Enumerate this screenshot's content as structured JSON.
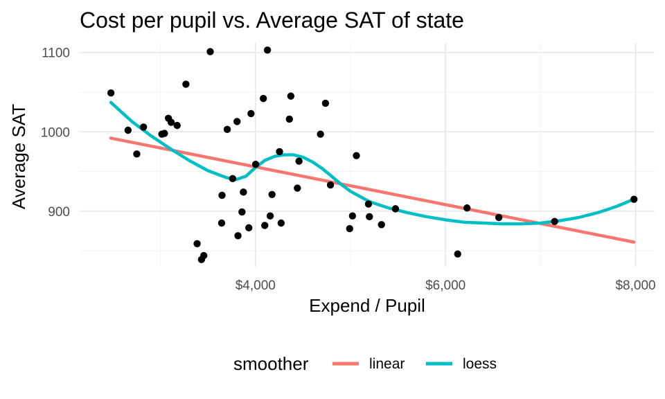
{
  "chart_data": {
    "type": "scatter",
    "title": "Cost per pupil vs. Average SAT of state",
    "xlabel": "Expend / Pupil",
    "ylabel": "Average SAT",
    "x_ticks": [
      4000,
      6000,
      8000
    ],
    "x_tick_labels": [
      "$4,000",
      "$6,000",
      "$8,000"
    ],
    "y_ticks": [
      900,
      1000,
      1100
    ],
    "y_tick_labels": [
      "900",
      "1000",
      "1100"
    ],
    "xlim": [
      2150,
      8200
    ],
    "ylim": [
      830,
      1112
    ],
    "grid": true,
    "legend_position": "bottom",
    "points": [
      {
        "x": 2479,
        "y": 1049
      },
      {
        "x": 2659,
        "y": 1002
      },
      {
        "x": 2751,
        "y": 972
      },
      {
        "x": 2822,
        "y": 1006
      },
      {
        "x": 3015,
        "y": 997
      },
      {
        "x": 3042,
        "y": 998
      },
      {
        "x": 3084,
        "y": 1017
      },
      {
        "x": 3113,
        "y": 1012
      },
      {
        "x": 3176,
        "y": 1008
      },
      {
        "x": 3268,
        "y": 1060
      },
      {
        "x": 3386,
        "y": 859
      },
      {
        "x": 3432,
        "y": 839
      },
      {
        "x": 3456,
        "y": 844
      },
      {
        "x": 3524,
        "y": 1101
      },
      {
        "x": 3644,
        "y": 885
      },
      {
        "x": 3648,
        "y": 920
      },
      {
        "x": 3703,
        "y": 1003
      },
      {
        "x": 3760,
        "y": 941
      },
      {
        "x": 3806,
        "y": 1013
      },
      {
        "x": 3816,
        "y": 869
      },
      {
        "x": 3858,
        "y": 899
      },
      {
        "x": 3873,
        "y": 924
      },
      {
        "x": 3930,
        "y": 879
      },
      {
        "x": 3953,
        "y": 1023
      },
      {
        "x": 4002,
        "y": 959
      },
      {
        "x": 4083,
        "y": 1042
      },
      {
        "x": 4098,
        "y": 882
      },
      {
        "x": 4126,
        "y": 1103
      },
      {
        "x": 4155,
        "y": 894
      },
      {
        "x": 4174,
        "y": 921
      },
      {
        "x": 4253,
        "y": 975
      },
      {
        "x": 4270,
        "y": 885
      },
      {
        "x": 4357,
        "y": 1016
      },
      {
        "x": 4372,
        "y": 1045
      },
      {
        "x": 4441,
        "y": 929
      },
      {
        "x": 4458,
        "y": 963
      },
      {
        "x": 4684,
        "y": 997
      },
      {
        "x": 4737,
        "y": 1036
      },
      {
        "x": 4789,
        "y": 933
      },
      {
        "x": 4991,
        "y": 878
      },
      {
        "x": 5021,
        "y": 894
      },
      {
        "x": 5062,
        "y": 970
      },
      {
        "x": 5189,
        "y": 909
      },
      {
        "x": 5199,
        "y": 893
      },
      {
        "x": 5326,
        "y": 883
      },
      {
        "x": 5473,
        "y": 903
      },
      {
        "x": 6128,
        "y": 846
      },
      {
        "x": 6226,
        "y": 904
      },
      {
        "x": 6561,
        "y": 892
      },
      {
        "x": 7148,
        "y": 887
      },
      {
        "x": 7983,
        "y": 915
      }
    ],
    "series": [
      {
        "name": "linear",
        "color": "#F8766D",
        "x": [
          2479,
          7983
        ],
        "y": [
          992,
          861
        ]
      },
      {
        "name": "loess",
        "color": "#00BFC4",
        "x": [
          2479,
          2700,
          2900,
          3100,
          3300,
          3500,
          3700,
          3800,
          3900,
          4000,
          4100,
          4200,
          4300,
          4400,
          4500,
          4600,
          4700,
          4800,
          4900,
          5000,
          5200,
          5400,
          5600,
          5800,
          6000,
          6200,
          6400,
          6600,
          6800,
          7000,
          7200,
          7400,
          7600,
          7800,
          7983
        ],
        "y": [
          1037,
          1013,
          995,
          979,
          964,
          951,
          942,
          940,
          944,
          955,
          964,
          969,
          971,
          971,
          968,
          962,
          954,
          944,
          934,
          925,
          912,
          904,
          898,
          893,
          889,
          886,
          885,
          884,
          884,
          885,
          888,
          892,
          898,
          906,
          915
        ]
      }
    ],
    "legend": {
      "title": "smoother",
      "entries": [
        "linear",
        "loess"
      ]
    },
    "point_color": "#000000"
  }
}
